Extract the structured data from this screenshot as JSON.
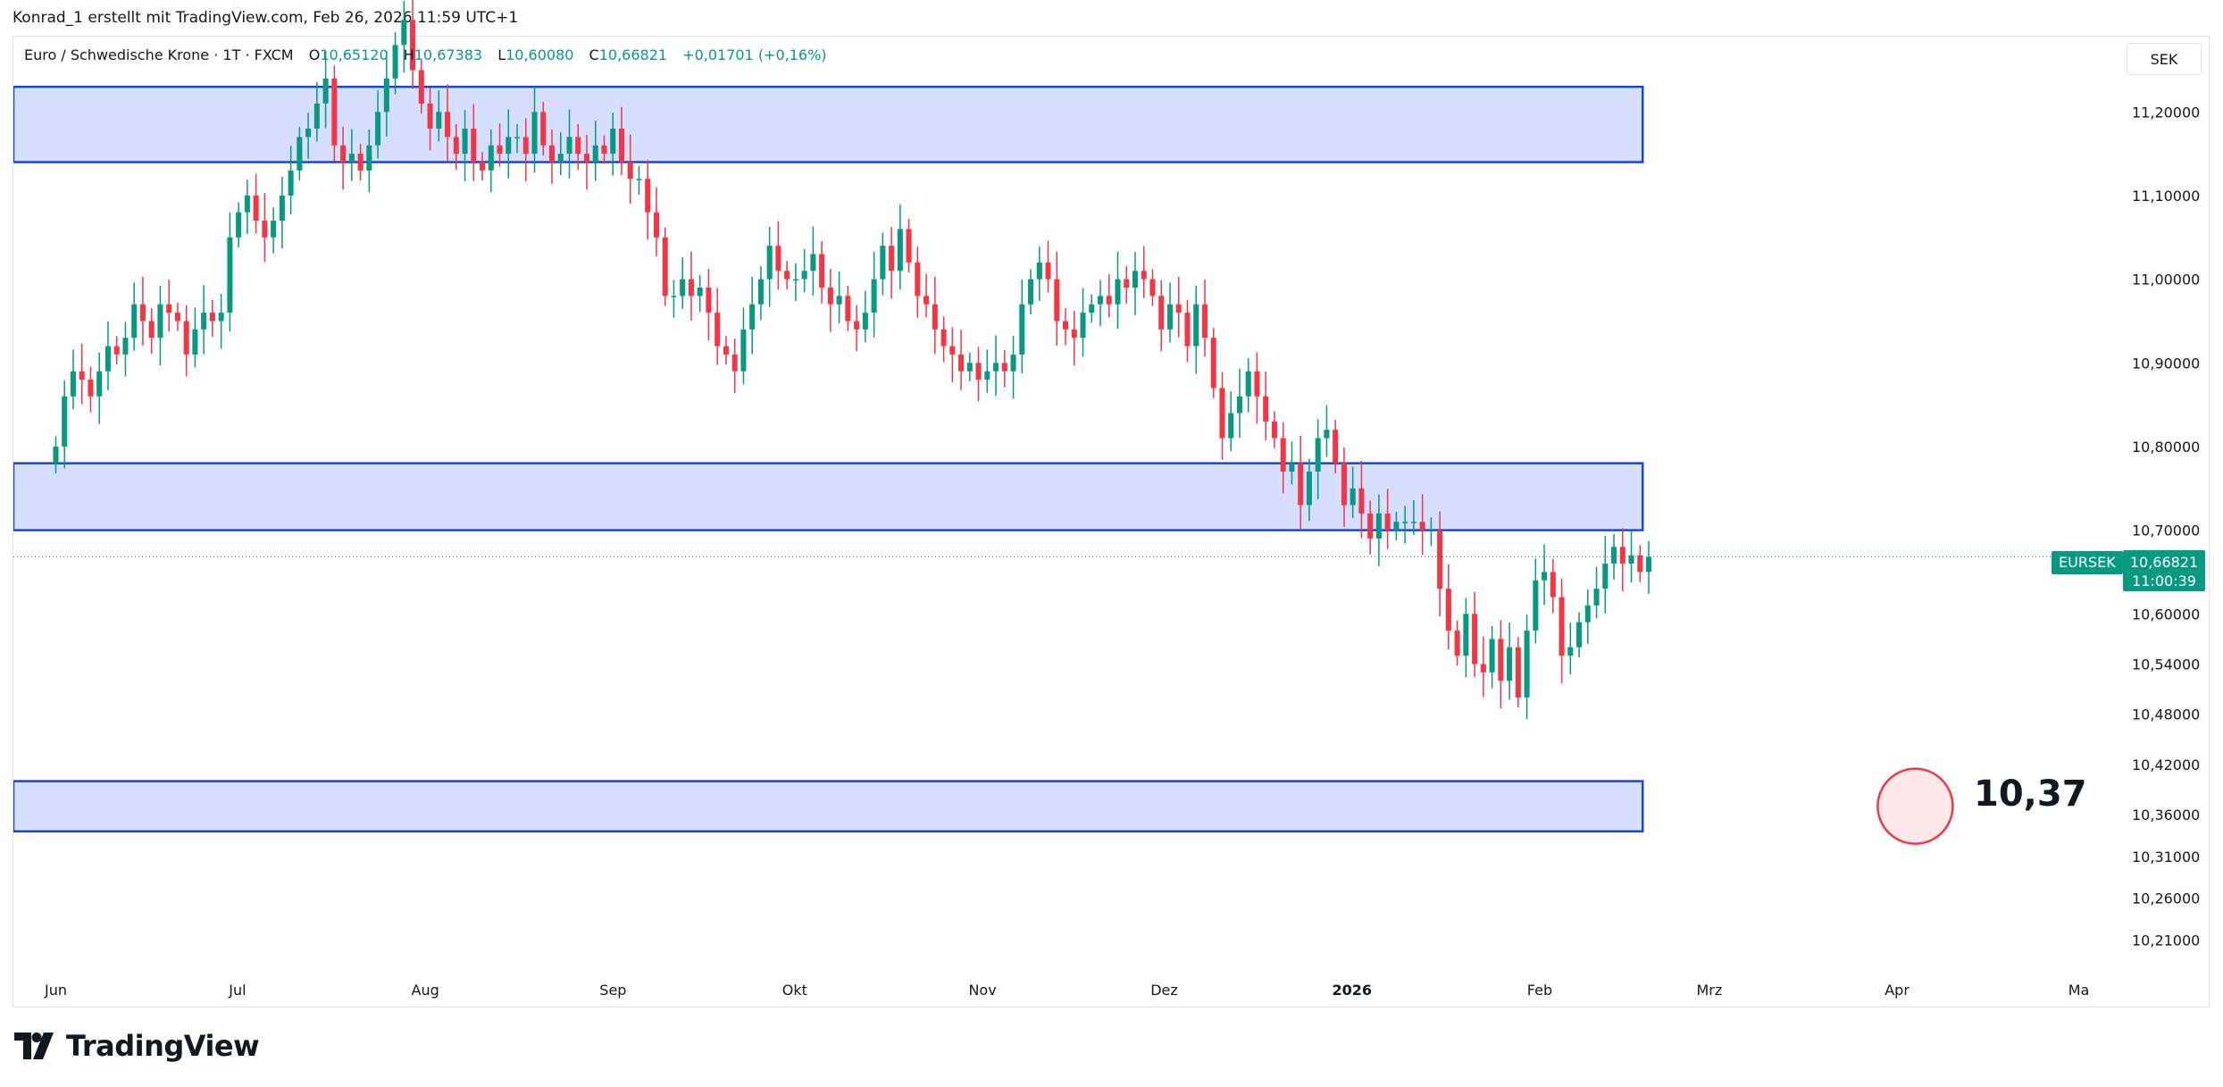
{
  "attribution": "Konrad_1 erstellt mit TradingView.com, Feb 26, 2026 11:59 UTC+1",
  "legend": {
    "symbol": "Euro / Schwedische Krone · 1T · FXCM",
    "o_label": "O",
    "o_value": "10,65120",
    "h_label": "H",
    "h_value": "10,67383",
    "l_label": "L",
    "l_value": "10,60080",
    "c_label": "C",
    "c_value": "10,66821",
    "change": "+0,01701 (+0,16%)"
  },
  "currency_button": "SEK",
  "last_price": {
    "symbol": "EURSEK",
    "price": "10,66821",
    "countdown": "11:00:39"
  },
  "target": {
    "label": "10,37"
  },
  "logo": "TradingView",
  "colors": {
    "up": "#089981",
    "down": "#f23645",
    "zone_fill": "#d1dcff",
    "zone_border": "#1848cc"
  },
  "chart_data": {
    "type": "candlestick",
    "symbol": "EURSEK",
    "timeframe": "1T",
    "x_labels": [
      "Jun",
      "Jul",
      "Aug",
      "Sep",
      "Okt",
      "Nov",
      "Dez",
      "2026",
      "Feb",
      "Mrz",
      "Apr",
      "Ma"
    ],
    "x_label_values": [
      0,
      30,
      61,
      92,
      122,
      153,
      183,
      214,
      245,
      273,
      304,
      334
    ],
    "bold_x_label": "2026",
    "y_tick_labels": [
      "11,20000",
      "11,10000",
      "11,00000",
      "10,90000",
      "10,80000",
      "10,70000",
      "10,60000",
      "10,54000",
      "10,48000",
      "10,42000",
      "10,36000",
      "10,31000",
      "10,26000",
      "10,21000"
    ],
    "y_tick_values": [
      11.2,
      11.1,
      11.0,
      10.9,
      10.8,
      10.7,
      10.6,
      10.54,
      10.48,
      10.42,
      10.36,
      10.31,
      10.26,
      10.21
    ],
    "y_range": [
      10.17,
      11.29
    ],
    "x_range": [
      -7,
      341
    ],
    "last_price": 10.66821,
    "zones": [
      {
        "x_start": -7,
        "x_end": 262,
        "y_low": 11.14,
        "y_high": 11.23
      },
      {
        "x_start": -7,
        "x_end": 262,
        "y_low": 10.7,
        "y_high": 10.78
      },
      {
        "x_start": -7,
        "x_end": 262,
        "y_low": 10.34,
        "y_high": 10.4
      }
    ],
    "target_marker": {
      "x": 307,
      "y": 10.37,
      "label": "10,37"
    },
    "closes": [
      10.8,
      10.86,
      10.89,
      10.88,
      10.86,
      10.89,
      10.92,
      10.91,
      10.93,
      10.97,
      10.95,
      10.93,
      10.97,
      10.96,
      10.95,
      10.91,
      10.94,
      10.96,
      10.95,
      10.96,
      11.05,
      11.08,
      11.1,
      11.07,
      11.05,
      11.07,
      11.1,
      11.13,
      11.17,
      11.18,
      11.21,
      11.24,
      11.16,
      11.14,
      11.15,
      11.13,
      11.16,
      11.2,
      11.24,
      11.28,
      11.31,
      11.25,
      11.21,
      11.18,
      11.2,
      11.17,
      11.15,
      11.18,
      11.14,
      11.13,
      11.16,
      11.15,
      11.17,
      11.17,
      11.15,
      11.2,
      11.16,
      11.14,
      11.15,
      11.17,
      11.15,
      11.14,
      11.16,
      11.15,
      11.18,
      11.14,
      11.12,
      11.12,
      11.08,
      11.05,
      10.98,
      10.98,
      11.0,
      10.98,
      10.99,
      10.96,
      10.92,
      10.91,
      10.89,
      10.94,
      10.97,
      11.0,
      11.04,
      11.01,
      11.0,
      11.0,
      11.01,
      11.03,
      10.99,
      10.97,
      10.98,
      10.95,
      10.94,
      10.96,
      11.0,
      11.04,
      11.01,
      11.06,
      11.02,
      10.98,
      10.97,
      10.94,
      10.92,
      10.91,
      10.89,
      10.9,
      10.88,
      10.89,
      10.9,
      10.89,
      10.91,
      10.97,
      11.0,
      11.02,
      11.0,
      10.95,
      10.94,
      10.93,
      10.96,
      10.97,
      10.98,
      10.97,
      11.0,
      10.99,
      11.01,
      11.0,
      10.98,
      10.94,
      10.97,
      10.96,
      10.92,
      10.97,
      10.93,
      10.87,
      10.81,
      10.84,
      10.86,
      10.89,
      10.86,
      10.83,
      10.81,
      10.77,
      10.78,
      10.73,
      10.77,
      10.81,
      10.82,
      10.78,
      10.73,
      10.75,
      10.72,
      10.69,
      10.72,
      10.7,
      10.71,
      10.71,
      10.71,
      10.7,
      10.7,
      10.63,
      10.58,
      10.55,
      10.6,
      10.54,
      10.53,
      10.57,
      10.52,
      10.56,
      10.5,
      10.58,
      10.64,
      10.65,
      10.62,
      10.55,
      10.56,
      10.59,
      10.61,
      10.63,
      10.66,
      10.68,
      10.66,
      10.67,
      10.65,
      10.668
    ]
  }
}
